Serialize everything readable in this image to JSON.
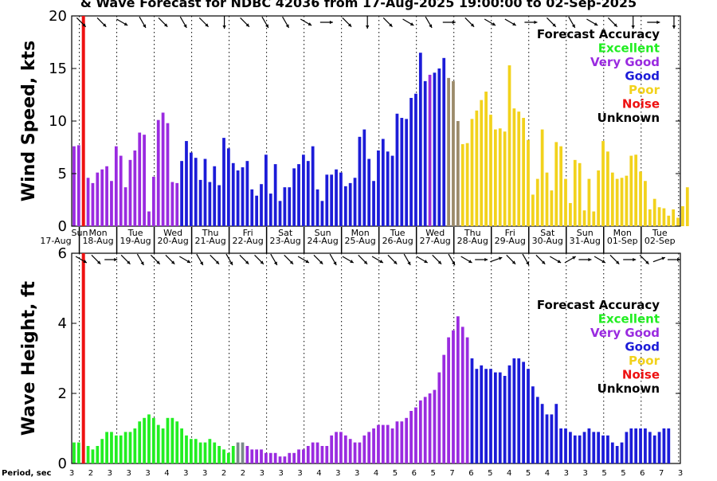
{
  "title": "& Wave Forecast for NDBC 42036 from 17-Aug-2025 19:00:00 to 02-Sep-2025",
  "colors": {
    "Excellent": "#22ee22",
    "Very Good": "#9a2be0",
    "Good": "#1c1cd8",
    "Poor": "#f2d21c",
    "Noise": "#ee1111",
    "Unknown": "#000000",
    "blend_good_poor": "#9b8a6a",
    "blend_exc_vg": "#7a8a8a"
  },
  "legend": {
    "title": "Forecast Accuracy",
    "entries": [
      {
        "label": "Excellent",
        "color_key": "Excellent"
      },
      {
        "label": "Very Good",
        "color_key": "Very Good"
      },
      {
        "label": "Good",
        "color_key": "Good"
      },
      {
        "label": "Poor",
        "color_key": "Poor"
      },
      {
        "label": "Noise",
        "color_key": "Noise"
      },
      {
        "label": "Unknown",
        "color_key": "Unknown"
      }
    ]
  },
  "day_labels": [
    {
      "day": "Sun",
      "date": "17-Aug"
    },
    {
      "day": "Mon",
      "date": "18-Aug"
    },
    {
      "day": "Tue",
      "date": "19-Aug"
    },
    {
      "day": "Wed",
      "date": "20-Aug"
    },
    {
      "day": "Thu",
      "date": "21-Aug"
    },
    {
      "day": "Fri",
      "date": "22-Aug"
    },
    {
      "day": "Sat",
      "date": "23-Aug"
    },
    {
      "day": "Sun",
      "date": "24-Aug"
    },
    {
      "day": "Mon",
      "date": "25-Aug"
    },
    {
      "day": "Tue",
      "date": "26-Aug"
    },
    {
      "day": "Wed",
      "date": "27-Aug"
    },
    {
      "day": "Thu",
      "date": "28-Aug"
    },
    {
      "day": "Fri",
      "date": "29-Aug"
    },
    {
      "day": "Sat",
      "date": "30-Aug"
    },
    {
      "day": "Sun",
      "date": "31-Aug"
    },
    {
      "day": "Mon",
      "date": "01-Sep"
    },
    {
      "day": "Tue",
      "date": "02-Sep"
    }
  ],
  "period_label": "Period, sec",
  "chart_data": [
    {
      "type": "bar",
      "panel": "wind",
      "ylabel": "Wind Speed, kts",
      "ylim": [
        0,
        20
      ],
      "yticks": [
        0,
        5,
        10,
        15,
        20
      ],
      "x_start": "17-Aug-2025 19:00",
      "hours_per_bar": 3,
      "values": [
        7.6,
        7.7,
        0,
        4.6,
        4.1,
        5.1,
        5.4,
        5.7,
        4.3,
        7.6,
        6.7,
        3.7,
        6.3,
        7.2,
        8.9,
        8.7,
        1.4,
        4.7,
        10.1,
        10.8,
        9.8,
        4.2,
        4.1,
        6.2,
        8.1,
        7.0,
        6.5,
        4.4,
        6.4,
        4.2,
        5.7,
        3.9,
        8.4,
        7.4,
        6.0,
        5.3,
        5.6,
        6.2,
        3.5,
        2.9,
        4.0,
        6.8,
        3.1,
        5.9,
        2.4,
        3.7,
        3.7,
        5.5,
        5.9,
        6.8,
        6.2,
        7.6,
        3.5,
        2.4,
        4.9,
        4.9,
        5.4,
        5.1,
        3.8,
        4.1,
        4.6,
        8.5,
        9.2,
        6.4,
        4.3,
        7.2,
        8.3,
        7.1,
        6.7,
        10.7,
        10.3,
        10.2,
        12.2,
        12.6,
        16.5,
        13.8,
        14.4,
        14.6,
        15.0,
        16.0,
        14.1,
        13.8,
        10.0,
        7.8,
        7.9,
        10.2,
        11.0,
        12.0,
        12.8,
        10.6,
        9.2,
        9.3,
        9.0,
        15.3,
        11.2,
        10.9,
        10.3,
        8.2,
        3.0,
        4.5,
        9.2,
        5.1,
        3.4,
        8.0,
        7.6,
        4.5,
        2.2,
        6.3,
        6.0,
        1.5,
        4.5,
        1.4,
        5.3,
        8.1,
        7.1,
        5.1,
        4.5,
        4.6,
        4.8,
        6.7,
        6.8,
        5.2,
        4.3,
        1.6,
        2.6,
        1.8,
        1.7,
        1.0,
        1.6,
        0.8,
        1.9,
        3.7
      ],
      "colors": [
        "Very Good",
        "Very Good",
        "Noise",
        "Very Good",
        "Very Good",
        "Very Good",
        "Very Good",
        "Very Good",
        "Very Good",
        "Very Good",
        "Very Good",
        "Very Good",
        "Very Good",
        "Very Good",
        "Very Good",
        "Very Good",
        "Very Good",
        "Very Good",
        "Very Good",
        "Very Good",
        "Very Good",
        "Very Good",
        "Very Good",
        "Good",
        "Good",
        "Good",
        "Good",
        "Good",
        "Good",
        "Good",
        "Good",
        "Good",
        "Good",
        "Good",
        "Good",
        "Good",
        "Good",
        "Good",
        "Good",
        "Good",
        "Good",
        "Good",
        "Good",
        "Good",
        "Good",
        "Good",
        "Good",
        "Good",
        "Good",
        "Good",
        "Good",
        "Good",
        "Good",
        "Good",
        "Good",
        "Good",
        "Good",
        "Good",
        "Good",
        "Good",
        "Good",
        "Good",
        "Good",
        "Good",
        "Good",
        "Good",
        "Good",
        "Good",
        "Good",
        "Good",
        "Good",
        "Good",
        "Good",
        "Good",
        "Good",
        "Good",
        "Very Good",
        "Good",
        "Good",
        "Good",
        "blend_good_poor",
        "blend_good_poor",
        "blend_good_poor",
        "Poor",
        "Poor",
        "Poor",
        "Poor",
        "Poor",
        "Poor",
        "Poor",
        "Poor",
        "Poor",
        "Poor",
        "Poor",
        "Poor",
        "Poor",
        "Poor",
        "Poor",
        "Poor",
        "Poor",
        "Poor",
        "Poor",
        "Poor",
        "Poor",
        "Poor",
        "Poor",
        "Poor",
        "Poor",
        "Poor",
        "Poor",
        "Poor",
        "Poor",
        "Poor",
        "Poor",
        "Poor",
        "Poor",
        "Poor",
        "Poor",
        "Poor",
        "Poor",
        "Poor",
        "Poor",
        "Poor",
        "Poor",
        "Poor",
        "Poor",
        "Poor",
        "Poor",
        "Poor",
        "Poor",
        "Poor",
        "Poor"
      ]
    },
    {
      "type": "bar",
      "panel": "wave",
      "ylabel": "Wave Height, ft",
      "ylim": [
        0,
        6
      ],
      "yticks": [
        0,
        2,
        4,
        6
      ],
      "x_start": "17-Aug-2025 19:00",
      "hours_per_bar": 3,
      "values": [
        0.6,
        0.6,
        0,
        0.5,
        0.4,
        0.5,
        0.7,
        0.9,
        0.9,
        0.8,
        0.8,
        0.9,
        0.9,
        1.0,
        1.2,
        1.3,
        1.4,
        1.3,
        1.1,
        1.0,
        1.3,
        1.3,
        1.2,
        1.0,
        0.8,
        0.7,
        0.7,
        0.6,
        0.6,
        0.7,
        0.6,
        0.5,
        0.4,
        0.3,
        0.5,
        0.6,
        0.6,
        0.5,
        0.4,
        0.4,
        0.4,
        0.3,
        0.3,
        0.3,
        0.2,
        0.2,
        0.3,
        0.3,
        0.4,
        0.4,
        0.5,
        0.6,
        0.6,
        0.5,
        0.5,
        0.8,
        0.9,
        0.9,
        0.8,
        0.7,
        0.6,
        0.6,
        0.8,
        0.9,
        1.0,
        1.1,
        1.1,
        1.1,
        1.0,
        1.2,
        1.2,
        1.3,
        1.5,
        1.6,
        1.8,
        1.9,
        2.0,
        2.1,
        2.6,
        3.1,
        3.6,
        3.8,
        4.2,
        3.9,
        3.6,
        3.0,
        2.7,
        2.8,
        2.7,
        2.7,
        2.6,
        2.6,
        2.5,
        2.8,
        3.0,
        3.0,
        2.9,
        2.7,
        2.2,
        1.9,
        1.7,
        1.4,
        1.4,
        1.7,
        1.0,
        1.0,
        0.9,
        0.8,
        0.8,
        0.9,
        1.0,
        0.9,
        0.9,
        0.8,
        0.8,
        0.6,
        0.5,
        0.6,
        0.9,
        1.0,
        1.0,
        1.0,
        1.0,
        0.9,
        0.8,
        0.9,
        1.0,
        1.0
      ],
      "colors": [
        "Excellent",
        "Excellent",
        "Noise",
        "Excellent",
        "Excellent",
        "Excellent",
        "Excellent",
        "Excellent",
        "Excellent",
        "Excellent",
        "Excellent",
        "Excellent",
        "Excellent",
        "Excellent",
        "Excellent",
        "Excellent",
        "Excellent",
        "Excellent",
        "Excellent",
        "Excellent",
        "Excellent",
        "Excellent",
        "Excellent",
        "Excellent",
        "Excellent",
        "Excellent",
        "Excellent",
        "Excellent",
        "Excellent",
        "Excellent",
        "Excellent",
        "Excellent",
        "Excellent",
        "Excellent",
        "Excellent",
        "blend_exc_vg",
        "blend_exc_vg",
        "Very Good",
        "Very Good",
        "Very Good",
        "Very Good",
        "Very Good",
        "Very Good",
        "Very Good",
        "Very Good",
        "Very Good",
        "Very Good",
        "Very Good",
        "Very Good",
        "Very Good",
        "Very Good",
        "Very Good",
        "Very Good",
        "Very Good",
        "Very Good",
        "Very Good",
        "Very Good",
        "Very Good",
        "Very Good",
        "Very Good",
        "Very Good",
        "Very Good",
        "Very Good",
        "Very Good",
        "Very Good",
        "Very Good",
        "Very Good",
        "Very Good",
        "Very Good",
        "Very Good",
        "Very Good",
        "Very Good",
        "Very Good",
        "Very Good",
        "Very Good",
        "Very Good",
        "Very Good",
        "Very Good",
        "Very Good",
        "Very Good",
        "Very Good",
        "Very Good",
        "Very Good",
        "Very Good",
        "Very Good",
        "Good",
        "Good",
        "Good",
        "Good",
        "Good",
        "Good",
        "Good",
        "Good",
        "Good",
        "Good",
        "Good",
        "Good",
        "Good",
        "Good",
        "Good",
        "Good",
        "Good",
        "Good",
        "Good",
        "Good",
        "Good",
        "Good",
        "Good",
        "Good",
        "Good",
        "Good",
        "Good",
        "Good",
        "Good",
        "Good",
        "Good",
        "Good",
        "Good",
        "Good",
        "Good",
        "Good",
        "Good",
        "Good",
        "Good",
        "Good",
        "Good",
        "Good",
        "Good",
        "Good",
        "Good",
        "Good"
      ]
    }
  ],
  "wind_arrows_deg": [
    45,
    45,
    30,
    60,
    45,
    60,
    45,
    90,
    45,
    60,
    60,
    30,
    0,
    45,
    90,
    45,
    30,
    60,
    0,
    45,
    30,
    30,
    0,
    45,
    60,
    30,
    45,
    90,
    0,
    90
  ],
  "wave_arrows_deg": [
    30,
    45,
    0,
    45,
    60,
    45,
    45,
    30,
    60,
    45,
    60,
    45,
    45,
    60,
    45,
    30,
    45,
    60,
    30,
    45,
    30,
    45,
    60,
    30,
    45,
    60,
    30,
    0,
    -20,
    45,
    60,
    45,
    30,
    -30,
    0,
    30,
    45,
    0,
    45,
    -20,
    0
  ],
  "periods": [
    "3",
    "2",
    "3",
    "3",
    "3",
    "4",
    "3",
    "3",
    "2",
    "2",
    "3",
    "3",
    "3",
    "4",
    "3",
    "3",
    "4",
    "5",
    "6",
    "5",
    "7",
    "6",
    "5",
    "4",
    "5",
    "4",
    "3",
    "3",
    "5",
    "5",
    "6",
    "7",
    "3"
  ]
}
